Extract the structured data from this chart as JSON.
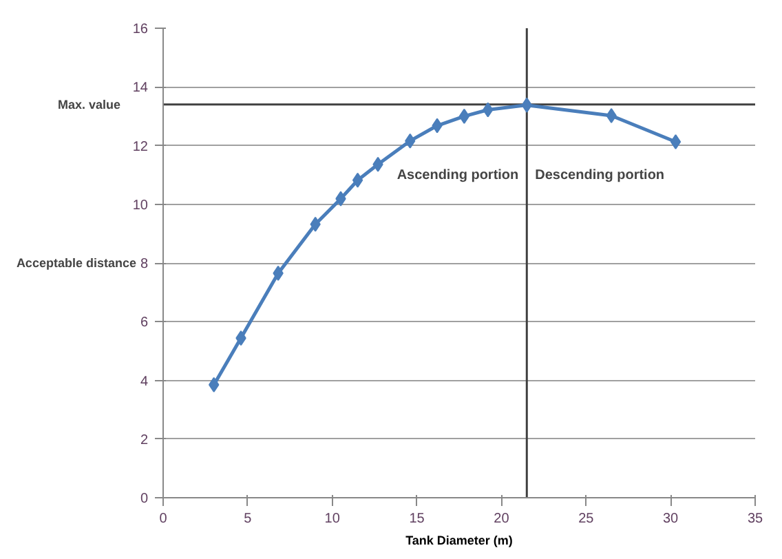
{
  "chart_data": {
    "type": "line",
    "xlabel": "Tank Diameter (m)",
    "ylabel": "Acceptable distance",
    "x": [
      3.0,
      4.6,
      6.8,
      9.0,
      10.5,
      11.5,
      12.7,
      14.6,
      16.2,
      17.8,
      19.2,
      21.5,
      26.5,
      30.3
    ],
    "series": [
      {
        "color": "#4a7ebb",
        "values": [
          3.85,
          5.44,
          7.65,
          9.32,
          10.19,
          10.82,
          11.36,
          12.16,
          12.68,
          13.0,
          13.22,
          13.38,
          13.02,
          12.13
        ]
      }
    ],
    "xlim": [
      0,
      35
    ],
    "xticks": [
      0,
      5,
      10,
      15,
      20,
      25,
      30,
      35
    ],
    "ylim": [
      0,
      16
    ],
    "yticks": [
      0,
      2,
      4,
      6,
      8,
      10,
      12,
      14,
      16
    ],
    "grid": "y",
    "marker": "diamond",
    "line_style": "solid",
    "ref_lines": [
      {
        "axis": "y",
        "value": 13.4,
        "label": "Max. value",
        "color": "#404040"
      },
      {
        "axis": "x",
        "value": 21.5,
        "color": "#404040"
      }
    ],
    "annotations": [
      "Ascending portion",
      "Descending portion"
    ]
  }
}
